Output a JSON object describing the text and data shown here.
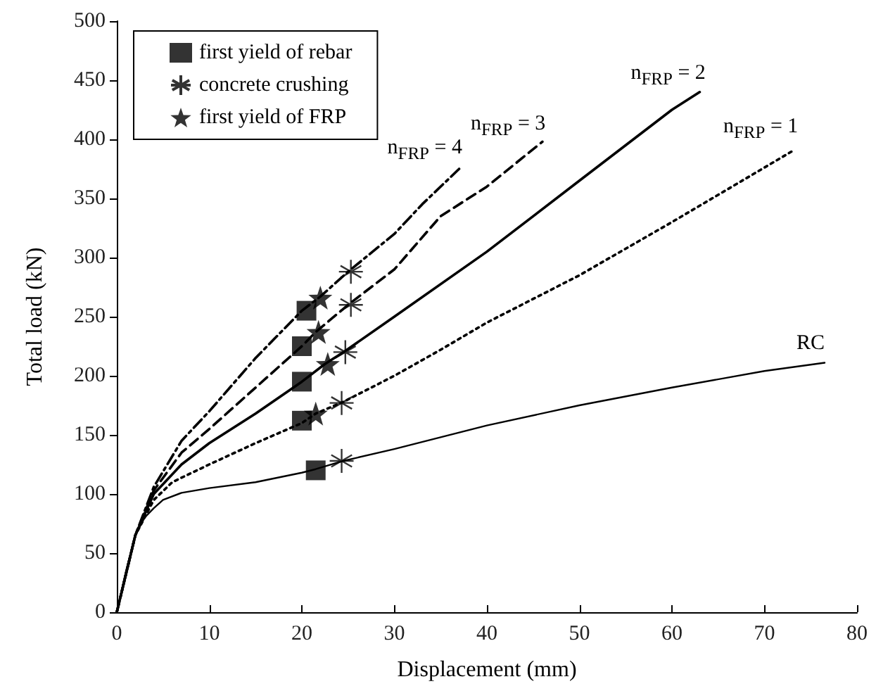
{
  "chart_data": {
    "type": "line",
    "xlabel": "Displacement (mm)",
    "ylabel": "Total load (kN)",
    "xlim": [
      0,
      80
    ],
    "xticks": [
      0,
      10,
      20,
      30,
      40,
      50,
      60,
      70,
      80
    ],
    "ylim": [
      0,
      500
    ],
    "yticks": [
      0,
      50,
      100,
      150,
      200,
      250,
      300,
      350,
      400,
      450,
      500
    ],
    "grid": false,
    "legend": "top left",
    "series": [
      {
        "name": "RC",
        "color": "#000000",
        "line_style": "solid",
        "marker": "none",
        "x": [
          0,
          1,
          2,
          3,
          4,
          5,
          7,
          10,
          15,
          20,
          21.5,
          24.5,
          30,
          40,
          50,
          60,
          70,
          76.5
        ],
        "values": [
          0,
          35,
          65,
          80,
          88,
          95,
          101,
          105,
          110,
          118,
          121,
          128,
          138,
          158,
          175,
          190,
          204,
          211
        ]
      },
      {
        "name": "n$_{FRP}$ = 1",
        "color": "#000000",
        "line_style": "dotted",
        "marker": "none",
        "x": [
          0,
          2,
          4,
          6,
          10,
          15,
          20,
          21.5,
          24.5,
          30,
          35,
          40,
          50,
          60,
          73
        ],
        "values": [
          0,
          65,
          95,
          110,
          125,
          143,
          160,
          168,
          178,
          200,
          222,
          245,
          285,
          330,
          390
        ]
      },
      {
        "name": "n$_{FRP}$ = 2",
        "color": "#000000",
        "line_style": "solid",
        "marker": "none",
        "x": [
          0,
          2,
          4,
          7,
          10,
          15,
          20,
          22.5,
          24.5,
          30,
          40,
          50,
          60,
          63
        ],
        "values": [
          0,
          65,
          100,
          125,
          143,
          168,
          195,
          210,
          220,
          250,
          305,
          365,
          425,
          440
        ]
      },
      {
        "name": "n$_{FRP}$ = 3",
        "color": "#000000",
        "line_style": "dashed",
        "marker": "none",
        "x": [
          0,
          2,
          4,
          7,
          10,
          15,
          20,
          21.5,
          25,
          30,
          35,
          40,
          46
        ],
        "values": [
          0,
          65,
          103,
          135,
          155,
          190,
          225,
          237,
          260,
          290,
          335,
          360,
          398
        ]
      },
      {
        "name": "n$_{FRP}$ = 4",
        "color": "#000000",
        "line_style": "dashdot",
        "marker": "none",
        "x": [
          0,
          2,
          4,
          7,
          10,
          15,
          20,
          22,
          25,
          30,
          33,
          37
        ],
        "values": [
          0,
          65,
          106,
          145,
          170,
          215,
          255,
          267,
          288,
          320,
          345,
          375
        ]
      },
      {
        "name": "first yield of rebar",
        "type": "scatter",
        "color": "#000000",
        "marker": "square",
        "x": [
          21.5,
          20,
          20,
          20,
          20.5
        ],
        "values": [
          120,
          162,
          195,
          225,
          255
        ]
      },
      {
        "name": "concrete crushing",
        "type": "scatter",
        "color": "#000000",
        "marker": "cross",
        "x": [
          24.3,
          24.3,
          24.7,
          25.3,
          25.3
        ],
        "values": [
          128,
          177,
          220,
          260,
          288
        ]
      },
      {
        "name": "first yield of FRP",
        "type": "scatter",
        "color": "#000000",
        "marker": "star",
        "x": [
          21.5,
          22.8,
          21.8,
          22
        ],
        "values": [
          168,
          210,
          237,
          266
        ]
      }
    ]
  }
}
